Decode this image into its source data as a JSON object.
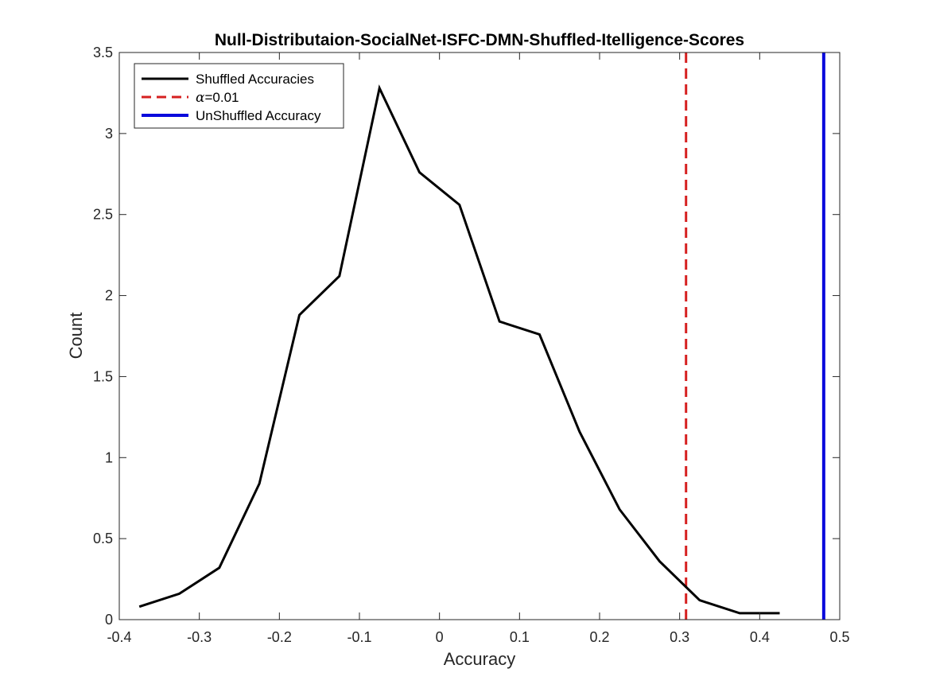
{
  "chart_data": {
    "type": "line",
    "title": "Null-Distributaion-SocialNet-ISFC-DMN-Shuffled-Itelligence-Scores",
    "xlabel": "Accuracy",
    "ylabel": "Count",
    "xlim": [
      -0.4,
      0.5
    ],
    "ylim": [
      0,
      3.5
    ],
    "xticks": [
      -0.4,
      -0.3,
      -0.2,
      -0.1,
      0,
      0.1,
      0.2,
      0.3,
      0.4,
      0.5
    ],
    "xtick_labels": [
      "-0.4",
      "-0.3",
      "-0.2",
      "-0.1",
      "0",
      "0.1",
      "0.2",
      "0.3",
      "0.4",
      "0.5"
    ],
    "yticks": [
      0,
      0.5,
      1,
      1.5,
      2,
      2.5,
      3,
      3.5
    ],
    "ytick_labels": [
      "0",
      "0.5",
      "1",
      "1.5",
      "2",
      "2.5",
      "3",
      "3.5"
    ],
    "grid": false,
    "legend_position": "top-left",
    "series": [
      {
        "name": "Shuffled Accuracies",
        "color": "#000000",
        "style": "solid",
        "x": [
          -0.375,
          -0.325,
          -0.275,
          -0.225,
          -0.175,
          -0.125,
          -0.075,
          -0.025,
          0.025,
          0.075,
          0.125,
          0.175,
          0.225,
          0.275,
          0.325,
          0.375,
          0.425
        ],
        "y": [
          0.08,
          0.16,
          0.32,
          0.84,
          1.88,
          2.12,
          3.28,
          2.76,
          2.56,
          1.84,
          1.76,
          1.16,
          0.68,
          0.36,
          0.12,
          0.04,
          0.04
        ]
      }
    ],
    "vertical_lines": [
      {
        "name": "α=0.01",
        "name_symbol": "α",
        "name_rest": "=0.01",
        "x": 0.308,
        "color": "#d62020",
        "style": "dashed"
      },
      {
        "name": "UnShuffled Accuracy",
        "x": 0.48,
        "color": "#0a0adc",
        "style": "solid"
      }
    ]
  }
}
